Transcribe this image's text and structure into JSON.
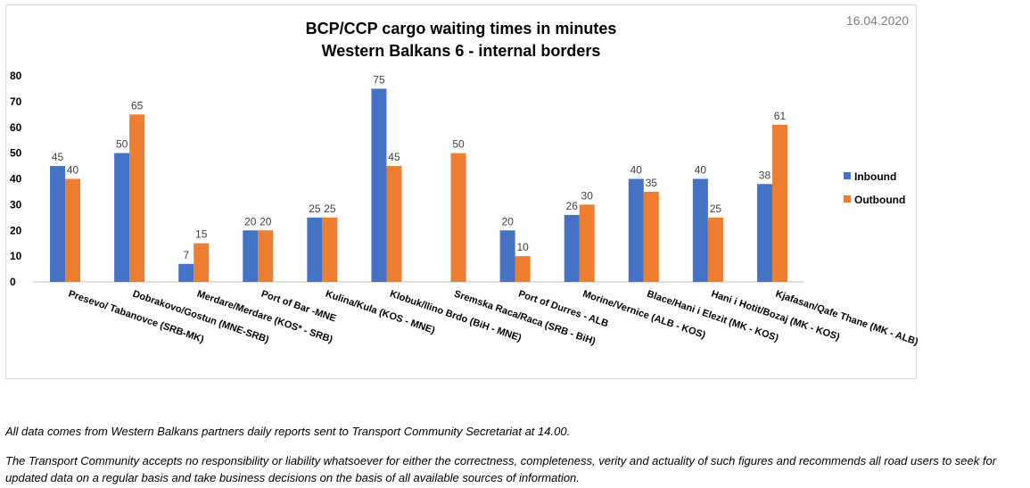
{
  "chart_data": {
    "type": "bar",
    "title": [
      "BCP/CCP cargo waiting times in minutes",
      "Western Balkans 6 - internal borders"
    ],
    "date": "16.04.2020",
    "categories": [
      "Presevo/ Tabanovce (SRB-MK)",
      "Dobrakovo/Gostun (MNE-SRB)",
      "Merdare/Merdare (KOS* - SRB)",
      "Port of Bar -MNE",
      "Kulina/Kula (KOS - MNE)",
      "Klobuk/Ilino Brdo (BiH - MNE)",
      "Sremska Raca/Raca (SRB - BiH)",
      "Port of Durres - ALB",
      "Morine/Vernice (ALB - KOS)",
      "Blace/Hani i Elezit (MK - KOS)",
      "Hani i Hotit/Bozaj (MK - KOS)",
      "Kjafasan/Qafe Thane (MK - ALB)"
    ],
    "series": [
      {
        "name": "Inbound",
        "color": "#4472c4",
        "values": [
          45,
          50,
          7,
          20,
          25,
          75,
          null,
          20,
          26,
          40,
          40,
          38
        ]
      },
      {
        "name": "Outbound",
        "color": "#ed7d31",
        "values": [
          40,
          65,
          15,
          20,
          25,
          45,
          50,
          10,
          30,
          35,
          25,
          61
        ]
      }
    ],
    "ylim": [
      0,
      80
    ],
    "yticks": [
      0,
      10,
      20,
      30,
      40,
      50,
      60,
      70,
      80
    ],
    "xlabel": "",
    "ylabel": "",
    "grid": false,
    "legend_position": "right"
  },
  "footnotes": [
    "All data comes from Western Balkans partners daily reports sent to Transport Community Secretariat at 14.00.",
    "The Transport Community accepts no responsibility or liability whatsoever for either the correctness, completeness, verity and actuality of such figures and recommends all road users to seek for updated data on a regular basis and take business decisions on the basis of all available sources of information."
  ]
}
